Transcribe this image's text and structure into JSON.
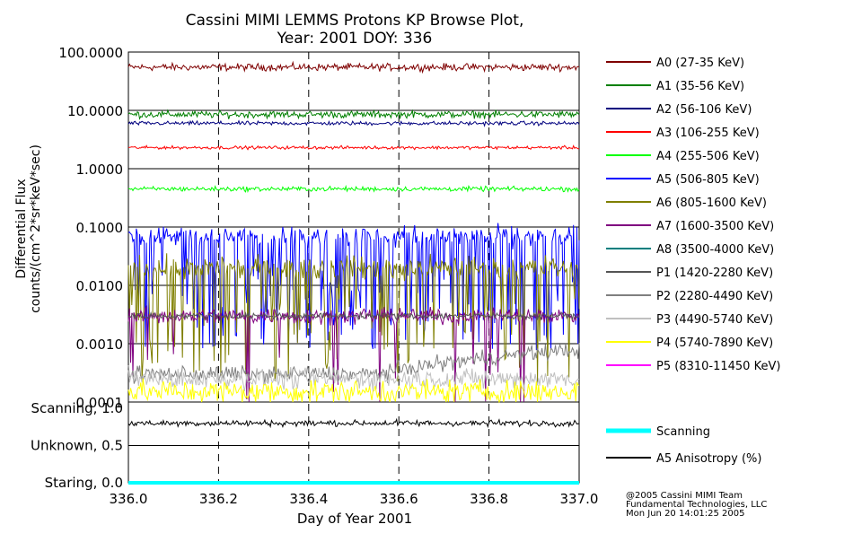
{
  "chart_data": {
    "type": "line",
    "title": "Cassini MIMI LEMMS Protons KP Browse Plot,",
    "subtitle": "Year: 2001 DOY: 336",
    "xlabel": "Day of Year 2001",
    "x_ticks": [
      "336.0",
      "336.2",
      "336.4",
      "336.6",
      "336.8",
      "337.0"
    ],
    "xlim": [
      336.0,
      337.0
    ],
    "main_panel": {
      "ylabel_line1": "Differential Flux",
      "ylabel_line2": "counts/(cm^2*sr*keV*sec)",
      "yscale": "log",
      "ylim": [
        0.0001,
        100
      ],
      "y_ticks": [
        {
          "value": 100,
          "label": "100.0000"
        },
        {
          "value": 10,
          "label": "10.0000"
        },
        {
          "value": 1,
          "label": "1.0000"
        },
        {
          "value": 0.1,
          "label": "0.1000"
        },
        {
          "value": 0.01,
          "label": "0.0100"
        },
        {
          "value": 0.001,
          "label": "0.0010"
        },
        {
          "value": 0.0001,
          "label": "0.0001"
        }
      ],
      "series": [
        {
          "name": "A0 (27-35 KeV)",
          "color": "#7f0000",
          "base": 55,
          "noise": 0.09
        },
        {
          "name": "A1 (35-56 KeV)",
          "color": "#007f00",
          "base": 8.5,
          "noise": 0.09
        },
        {
          "name": "A2 (56-106 KeV)",
          "color": "#00007f",
          "base": 6.0,
          "noise": 0.05
        },
        {
          "name": "A3 (106-255 KeV)",
          "color": "#ff0000",
          "base": 2.3,
          "noise": 0.04
        },
        {
          "name": "A4 (255-506 KeV)",
          "color": "#00ff00",
          "base": 0.45,
          "noise": 0.06
        },
        {
          "name": "A5 (506-805 KeV)",
          "color": "#0000ff",
          "base": 0.07,
          "noise": 0.25,
          "dips": 0.3
        },
        {
          "name": "A6 (805-1600 KeV)",
          "color": "#7f7f00",
          "base": 0.02,
          "noise": 0.3,
          "dips": 0.25
        },
        {
          "name": "A7 (1600-3500 KeV)",
          "color": "#7f007f",
          "base": 0.003,
          "noise": 0.2,
          "dips": 0.06
        },
        {
          "name": "A8 (3500-4000 KeV)",
          "color": "#007f7f",
          "base": null
        },
        {
          "name": "P1 (1420-2280 KeV)",
          "color": "#555555",
          "base": 0.003,
          "noise": 0.08
        },
        {
          "name": "P2 (2280-4490 KeV)",
          "color": "#7f7f7f",
          "base": 0.0003,
          "noise": 0.2,
          "rise": 0.0005
        },
        {
          "name": "P3 (4490-5740 KeV)",
          "color": "#c0c0c0",
          "base": 0.00025,
          "noise": 0.25
        },
        {
          "name": "P4 (5740-7890 KeV)",
          "color": "#ffff00",
          "base": 0.00015,
          "noise": 0.3
        },
        {
          "name": "P5 (8310-11450 KeV)",
          "color": "#ff00ff",
          "base": null
        }
      ]
    },
    "lower_panel": {
      "y_ticks": [
        {
          "value": 1.0,
          "label": "Scanning, 1.0"
        },
        {
          "value": 0.5,
          "label": "Unknown, 0.5"
        },
        {
          "value": 0.0,
          "label": "Staring, 0.0"
        }
      ],
      "ylim": [
        0,
        1.0
      ],
      "series": [
        {
          "name": "Scanning",
          "color": "#00ffff",
          "value": 0.0
        },
        {
          "name": "A5 Anisotropy (%)",
          "color": "#000000",
          "value": 0.8,
          "noise": 0.06
        }
      ]
    },
    "footer": {
      "line1": "@2005 Cassini MIMI Team",
      "line2": "Fundamental Technologies, LLC",
      "line3": "Mon Jun 20 14:01:25 2005"
    }
  }
}
